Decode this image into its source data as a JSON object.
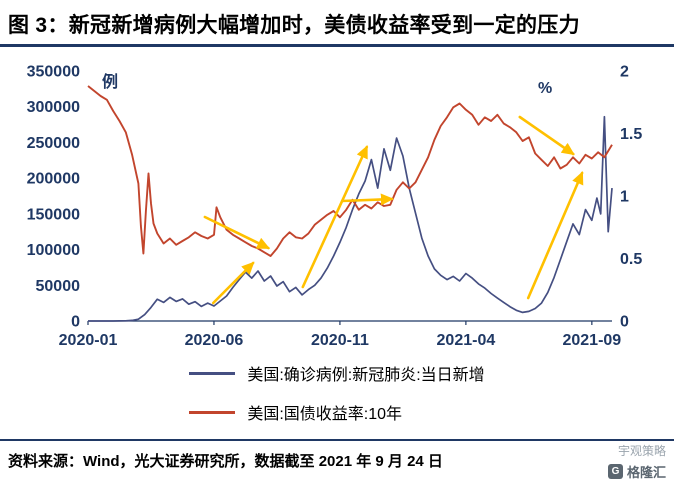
{
  "title": "图 3：新冠新增病例大幅增加时，美债收益率受到一定的压力",
  "footer": {
    "source_text": "资料来源：Wind，光大证券研究所，数据截至 2021 年 9 月 24 日"
  },
  "watermark": {
    "line1": "宇观策略",
    "line2": "格隆汇"
  },
  "colors": {
    "title_rule": "#1F3864",
    "axis_label": "#1F3864",
    "cases_line": "#454F82",
    "yield_line": "#C2452D",
    "arrow": "#FFC000"
  },
  "chart_data": {
    "type": "line",
    "title": "",
    "grid": false,
    "legend_position": "bottom",
    "x_axis": {
      "ticks": [
        "2020-01",
        "2020-06",
        "2020-11",
        "2021-04",
        "2021-09"
      ],
      "tick_positions_months": [
        0,
        5,
        10,
        15,
        20
      ],
      "range_months": [
        0,
        20.8
      ]
    },
    "left_axis": {
      "unit": "例",
      "ticks": [
        0,
        50000,
        100000,
        150000,
        200000,
        250000,
        300000,
        350000
      ],
      "range": [
        0,
        350000
      ]
    },
    "right_axis": {
      "unit": "%",
      "ticks": [
        0,
        0.5,
        1,
        1.5,
        2
      ],
      "range": [
        0,
        2
      ]
    },
    "series": [
      {
        "name": "美国:确诊病例:新冠肺炎:当日新增",
        "axis": "left",
        "color": "#454F82",
        "points": [
          [
            0,
            0
          ],
          [
            0.25,
            0
          ],
          [
            0.5,
            0
          ],
          [
            0.75,
            0
          ],
          [
            1,
            0
          ],
          [
            1.25,
            100
          ],
          [
            1.5,
            300
          ],
          [
            1.75,
            900
          ],
          [
            2,
            2500
          ],
          [
            2.25,
            9000
          ],
          [
            2.5,
            19000
          ],
          [
            2.75,
            30500
          ],
          [
            3,
            26000
          ],
          [
            3.25,
            33000
          ],
          [
            3.5,
            27500
          ],
          [
            3.75,
            31000
          ],
          [
            4,
            23500
          ],
          [
            4.25,
            27000
          ],
          [
            4.5,
            20500
          ],
          [
            4.75,
            25000
          ],
          [
            5,
            21000
          ],
          [
            5.25,
            28000
          ],
          [
            5.5,
            35000
          ],
          [
            5.75,
            47000
          ],
          [
            6,
            58000
          ],
          [
            6.25,
            68500
          ],
          [
            6.5,
            60000
          ],
          [
            6.75,
            70000
          ],
          [
            7,
            56000
          ],
          [
            7.25,
            63000
          ],
          [
            7.5,
            49000
          ],
          [
            7.75,
            55000
          ],
          [
            8,
            41000
          ],
          [
            8.25,
            47000
          ],
          [
            8.5,
            36500
          ],
          [
            8.75,
            44000
          ],
          [
            9,
            50000
          ],
          [
            9.25,
            60000
          ],
          [
            9.5,
            74000
          ],
          [
            9.75,
            91000
          ],
          [
            10,
            110000
          ],
          [
            10.25,
            131000
          ],
          [
            10.5,
            156000
          ],
          [
            10.75,
            178000
          ],
          [
            11,
            196000
          ],
          [
            11.25,
            226000
          ],
          [
            11.5,
            186000
          ],
          [
            11.75,
            241000
          ],
          [
            12,
            211000
          ],
          [
            12.25,
            256000
          ],
          [
            12.5,
            231000
          ],
          [
            12.75,
            186000
          ],
          [
            13,
            151000
          ],
          [
            13.25,
            116000
          ],
          [
            13.5,
            91000
          ],
          [
            13.75,
            73000
          ],
          [
            14,
            64000
          ],
          [
            14.25,
            58000
          ],
          [
            14.5,
            62500
          ],
          [
            14.75,
            56000
          ],
          [
            15,
            66500
          ],
          [
            15.25,
            60000
          ],
          [
            15.5,
            52000
          ],
          [
            15.75,
            46000
          ],
          [
            16,
            38500
          ],
          [
            16.25,
            32000
          ],
          [
            16.5,
            26000
          ],
          [
            16.75,
            20000
          ],
          [
            17,
            15000
          ],
          [
            17.25,
            12000
          ],
          [
            17.5,
            13500
          ],
          [
            17.75,
            17500
          ],
          [
            18,
            25000
          ],
          [
            18.25,
            40000
          ],
          [
            18.5,
            61000
          ],
          [
            18.75,
            86000
          ],
          [
            19,
            111000
          ],
          [
            19.25,
            136000
          ],
          [
            19.5,
            121000
          ],
          [
            19.75,
            156000
          ],
          [
            20,
            141000
          ],
          [
            20.2,
            172000
          ],
          [
            20.35,
            150000
          ],
          [
            20.5,
            286000
          ],
          [
            20.65,
            125000
          ],
          [
            20.8,
            186000
          ]
        ]
      },
      {
        "name": "美国:国债收益率:10年",
        "axis": "right",
        "color": "#C2452D",
        "points": [
          [
            0,
            1.88
          ],
          [
            0.25,
            1.84
          ],
          [
            0.5,
            1.8
          ],
          [
            0.75,
            1.77
          ],
          [
            1,
            1.68
          ],
          [
            1.25,
            1.6
          ],
          [
            1.5,
            1.51
          ],
          [
            1.75,
            1.33
          ],
          [
            2,
            1.1
          ],
          [
            2.1,
            0.76
          ],
          [
            2.2,
            0.54
          ],
          [
            2.3,
            0.88
          ],
          [
            2.4,
            1.18
          ],
          [
            2.5,
            0.94
          ],
          [
            2.6,
            0.78
          ],
          [
            2.75,
            0.7
          ],
          [
            3,
            0.62
          ],
          [
            3.25,
            0.66
          ],
          [
            3.5,
            0.61
          ],
          [
            3.75,
            0.64
          ],
          [
            4,
            0.67
          ],
          [
            4.25,
            0.71
          ],
          [
            4.5,
            0.68
          ],
          [
            4.75,
            0.66
          ],
          [
            5,
            0.69
          ],
          [
            5.1,
            0.91
          ],
          [
            5.25,
            0.83
          ],
          [
            5.5,
            0.73
          ],
          [
            5.75,
            0.69
          ],
          [
            6,
            0.66
          ],
          [
            6.25,
            0.63
          ],
          [
            6.5,
            0.6
          ],
          [
            6.75,
            0.58
          ],
          [
            7,
            0.55
          ],
          [
            7.25,
            0.52
          ],
          [
            7.5,
            0.58
          ],
          [
            7.75,
            0.66
          ],
          [
            8,
            0.71
          ],
          [
            8.25,
            0.67
          ],
          [
            8.5,
            0.66
          ],
          [
            8.75,
            0.7
          ],
          [
            9,
            0.77
          ],
          [
            9.25,
            0.81
          ],
          [
            9.5,
            0.85
          ],
          [
            9.75,
            0.88
          ],
          [
            10,
            0.83
          ],
          [
            10.25,
            0.89
          ],
          [
            10.5,
            0.97
          ],
          [
            10.75,
            0.89
          ],
          [
            11,
            0.93
          ],
          [
            11.25,
            0.9
          ],
          [
            11.5,
            0.95
          ],
          [
            11.75,
            0.92
          ],
          [
            12,
            0.93
          ],
          [
            12.25,
            1.05
          ],
          [
            12.5,
            1.11
          ],
          [
            12.75,
            1.06
          ],
          [
            13,
            1.11
          ],
          [
            13.25,
            1.21
          ],
          [
            13.5,
            1.31
          ],
          [
            13.75,
            1.45
          ],
          [
            14,
            1.56
          ],
          [
            14.25,
            1.63
          ],
          [
            14.5,
            1.71
          ],
          [
            14.75,
            1.74
          ],
          [
            15,
            1.69
          ],
          [
            15.25,
            1.65
          ],
          [
            15.5,
            1.57
          ],
          [
            15.75,
            1.63
          ],
          [
            16,
            1.6
          ],
          [
            16.25,
            1.65
          ],
          [
            16.5,
            1.58
          ],
          [
            16.75,
            1.55
          ],
          [
            17,
            1.51
          ],
          [
            17.25,
            1.44
          ],
          [
            17.5,
            1.47
          ],
          [
            17.75,
            1.34
          ],
          [
            18,
            1.29
          ],
          [
            18.25,
            1.24
          ],
          [
            18.5,
            1.31
          ],
          [
            18.75,
            1.22
          ],
          [
            19,
            1.25
          ],
          [
            19.25,
            1.31
          ],
          [
            19.5,
            1.26
          ],
          [
            19.75,
            1.33
          ],
          [
            20,
            1.3
          ],
          [
            20.25,
            1.35
          ],
          [
            20.5,
            1.31
          ],
          [
            20.8,
            1.41
          ]
        ]
      }
    ],
    "annotations": {
      "arrow_color": "#FFC000",
      "arrows": [
        {
          "fx1": 0.223,
          "fy1": 0.584,
          "fx2": 0.344,
          "fy2": 0.708
        },
        {
          "fx1": 0.239,
          "fy1": 0.928,
          "fx2": 0.315,
          "fy2": 0.768
        },
        {
          "fx1": 0.41,
          "fy1": 0.864,
          "fx2": 0.532,
          "fy2": 0.304
        },
        {
          "fx1": 0.485,
          "fy1": 0.52,
          "fx2": 0.58,
          "fy2": 0.512
        },
        {
          "fx1": 0.824,
          "fy1": 0.184,
          "fx2": 0.926,
          "fy2": 0.332
        },
        {
          "fx1": 0.84,
          "fy1": 0.908,
          "fx2": 0.943,
          "fy2": 0.408
        }
      ]
    }
  }
}
